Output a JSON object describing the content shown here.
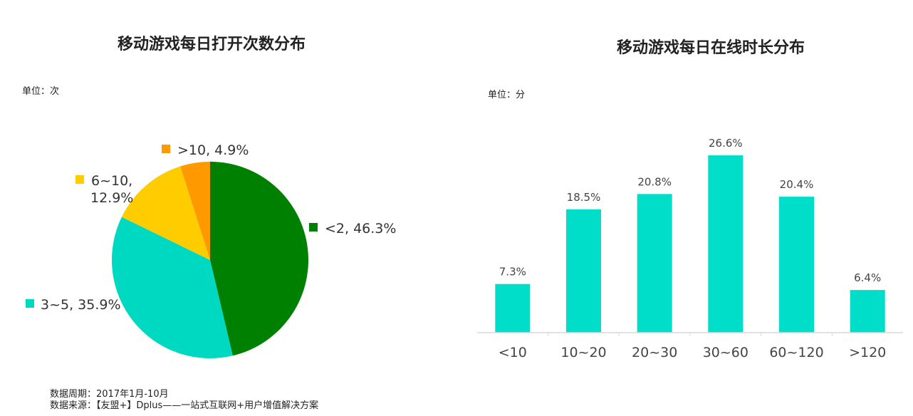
{
  "pie_chart": {
    "title": "移动游戏每日打开次数分布",
    "unit": "单位：次"
  },
  "bar_chart": {
    "title": "移动游戏每日在线时长分布",
    "unit": "单位：分"
  },
  "footer": {
    "period": "数据周期：2017年1月-10月",
    "source": "数据来源：【友盟+】Dplus——一站式互联网+用户增值解决方案"
  },
  "chart_data": [
    {
      "type": "pie",
      "title": "移动游戏每日打开次数分布",
      "slices": [
        {
          "label": "<2",
          "value": 46.3,
          "text": "<2, 46.3%",
          "color": "#008000"
        },
        {
          "label": "3~5",
          "value": 35.9,
          "text": "3~5, 35.9%",
          "color": "#00D9C2"
        },
        {
          "label": "6~10",
          "value": 12.9,
          "text": "6~10, 12.9%",
          "color": "#FFCC00"
        },
        {
          "label": ">10",
          "value": 4.9,
          "text": ">10, 4.9%",
          "color": "#FF9900"
        }
      ]
    },
    {
      "type": "bar",
      "title": "移动游戏每日在线时长分布",
      "categories": [
        "<10",
        "10~20",
        "20~30",
        "30~60",
        "60~120",
        ">120"
      ],
      "values": [
        7.3,
        18.5,
        20.8,
        26.6,
        20.4,
        6.4
      ],
      "data_labels": [
        "7.3%",
        "18.5%",
        "20.8%",
        "26.6%",
        "20.4%",
        "6.4%"
      ],
      "ylim": [
        0,
        28
      ],
      "color": "#00DDC8",
      "grid": false
    }
  ]
}
